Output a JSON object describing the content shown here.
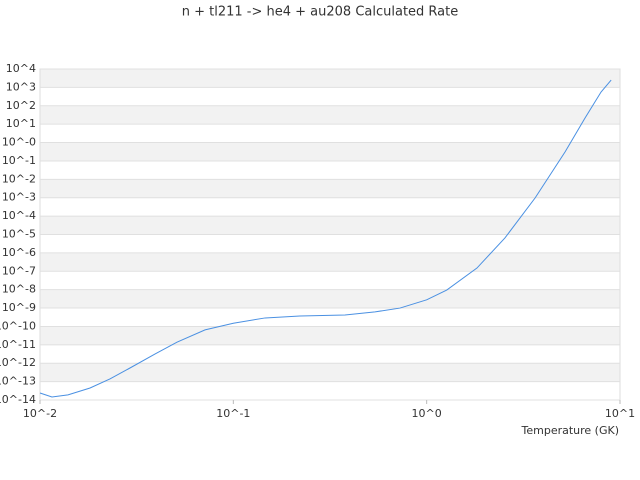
{
  "chart_data": {
    "type": "line",
    "title": "n + tl211 -> he4 + au208 Calculated Rate",
    "x_label": "Temperature (GK)",
    "x_scale": "log",
    "y_scale": "log",
    "grid": true,
    "xlim": [
      0.01,
      10
    ],
    "ylim": [
      1e-14,
      10000
    ],
    "xticks": [
      {
        "value": 0.01,
        "label": "10^-2"
      },
      {
        "value": 0.1,
        "label": "10^-1"
      },
      {
        "value": 1,
        "label": "10^0"
      },
      {
        "value": 10,
        "label": "10^1"
      }
    ],
    "yticks": [
      {
        "value": 10000,
        "label": "10^4"
      },
      {
        "value": 1000,
        "label": "10^3"
      },
      {
        "value": 100,
        "label": "10^2"
      },
      {
        "value": 10,
        "label": "10^1"
      },
      {
        "value": 1,
        "label": "10^-0"
      },
      {
        "value": 0.1,
        "label": "10^-1"
      },
      {
        "value": 0.01,
        "label": "10^-2"
      },
      {
        "value": 0.001,
        "label": "10^-3"
      },
      {
        "value": 0.0001,
        "label": "10^-4"
      },
      {
        "value": 1e-05,
        "label": "10^-5"
      },
      {
        "value": 1e-06,
        "label": "10^-6"
      },
      {
        "value": 1e-07,
        "label": "10^-7"
      },
      {
        "value": 1e-08,
        "label": "10^-8"
      },
      {
        "value": 1e-09,
        "label": "10^-9"
      },
      {
        "value": 1e-10,
        "label": "10^-10"
      },
      {
        "value": 1e-11,
        "label": "10^-11"
      },
      {
        "value": 1e-12,
        "label": "10^-12"
      },
      {
        "value": 1e-13,
        "label": "10^-13"
      },
      {
        "value": 1e-14,
        "label": "10^-14"
      }
    ],
    "x": [
      0.01,
      0.01153,
      0.01396,
      0.01815,
      0.023,
      0.0292,
      0.0394,
      0.0511,
      0.0714,
      0.1,
      0.146,
      0.221,
      0.378,
      0.541,
      0.728,
      1,
      1.27,
      1.82,
      2.54,
      3.64,
      5.2,
      6.6,
      7.98,
      9.0
    ],
    "series": [
      {
        "color": "#4a90e2",
        "values": [
          2.4e-14,
          1.45e-14,
          1.9e-14,
          4.5e-14,
          1.4e-13,
          5.5e-13,
          3.2e-12,
          1.4e-11,
          6.5e-11,
          1.5e-10,
          2.9e-10,
          3.7e-10,
          4.2e-10,
          6.2e-10,
          1e-09,
          2.8e-09,
          9.5e-09,
          1.5e-07,
          6.5e-06,
          0.00098,
          0.31,
          22,
          560,
          2500
        ]
      }
    ]
  }
}
